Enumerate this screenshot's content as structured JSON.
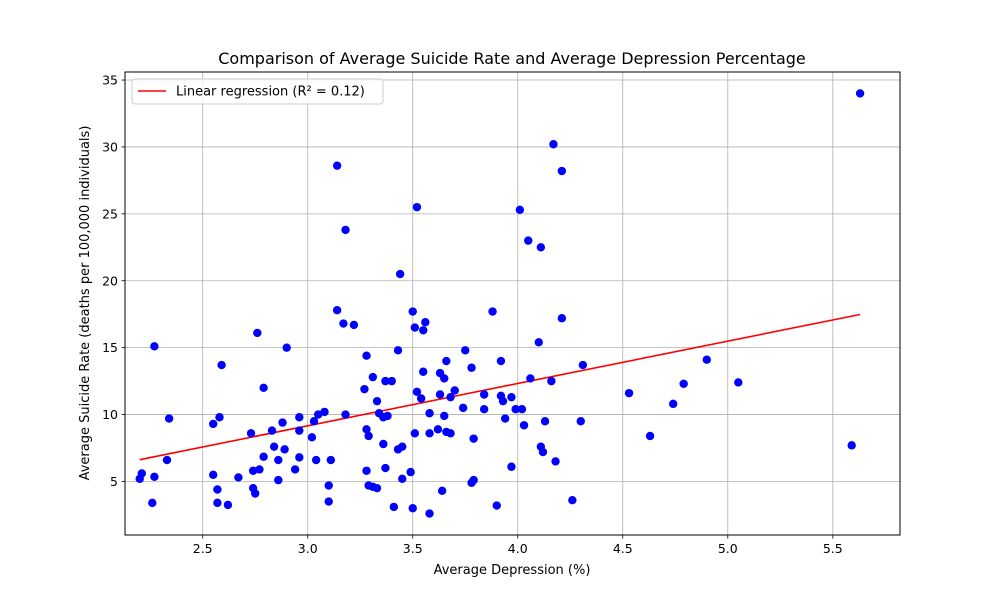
{
  "chart_data": {
    "type": "scatter",
    "title": "Comparison of Average Suicide Rate and Average Depression Percentage",
    "xlabel": "Average Depression (%)",
    "ylabel": "Average Suicide Rate (deaths per 100,000 individuals)",
    "xlim": [
      2.13,
      5.82
    ],
    "ylim": [
      1.0,
      35.6
    ],
    "x_ticks": [
      "2.5",
      "3.0",
      "3.5",
      "4.0",
      "4.5",
      "5.0",
      "5.5"
    ],
    "y_ticks": [
      "5",
      "10",
      "15",
      "20",
      "25",
      "30",
      "35"
    ],
    "grid": true,
    "legend_position": "top-left",
    "point_color": "#0000ff",
    "regression": {
      "label": "Linear regression (R² = 0.12)",
      "color": "#ff0000",
      "x": [
        2.2,
        5.63
      ],
      "y": [
        6.63,
        17.48
      ]
    },
    "points": [
      [
        2.2,
        5.2
      ],
      [
        2.21,
        5.6
      ],
      [
        2.26,
        3.4
      ],
      [
        2.27,
        15.1
      ],
      [
        2.27,
        5.35
      ],
      [
        2.33,
        6.6
      ],
      [
        2.34,
        9.7
      ],
      [
        2.55,
        9.3
      ],
      [
        2.55,
        5.5
      ],
      [
        2.57,
        4.4
      ],
      [
        2.57,
        3.4
      ],
      [
        2.58,
        9.8
      ],
      [
        2.59,
        13.7
      ],
      [
        2.62,
        3.25
      ],
      [
        2.67,
        5.3
      ],
      [
        2.73,
        8.6
      ],
      [
        2.74,
        4.5
      ],
      [
        2.74,
        5.8
      ],
      [
        2.75,
        4.1
      ],
      [
        2.76,
        16.1
      ],
      [
        2.77,
        5.9
      ],
      [
        2.79,
        12.0
      ],
      [
        2.79,
        6.85
      ],
      [
        2.83,
        8.8
      ],
      [
        2.84,
        7.6
      ],
      [
        2.86,
        5.1
      ],
      [
        2.86,
        6.6
      ],
      [
        2.88,
        9.4
      ],
      [
        2.89,
        7.4
      ],
      [
        2.9,
        15.0
      ],
      [
        2.94,
        5.9
      ],
      [
        2.96,
        6.8
      ],
      [
        2.96,
        9.8
      ],
      [
        2.96,
        8.8
      ],
      [
        3.02,
        8.3
      ],
      [
        3.03,
        9.5
      ],
      [
        3.04,
        6.6
      ],
      [
        3.05,
        10.0
      ],
      [
        3.08,
        10.2
      ],
      [
        3.1,
        4.7
      ],
      [
        3.1,
        3.5
      ],
      [
        3.11,
        6.6
      ],
      [
        3.14,
        28.6
      ],
      [
        3.14,
        17.8
      ],
      [
        3.17,
        16.8
      ],
      [
        3.18,
        23.8
      ],
      [
        3.18,
        10.0
      ],
      [
        3.22,
        16.7
      ],
      [
        3.27,
        11.9
      ],
      [
        3.28,
        14.4
      ],
      [
        3.28,
        8.9
      ],
      [
        3.28,
        5.8
      ],
      [
        3.29,
        8.4
      ],
      [
        3.29,
        4.7
      ],
      [
        3.31,
        12.8
      ],
      [
        3.31,
        4.6
      ],
      [
        3.33,
        4.5
      ],
      [
        3.33,
        11.0
      ],
      [
        3.34,
        10.1
      ],
      [
        3.36,
        9.8
      ],
      [
        3.36,
        7.8
      ],
      [
        3.37,
        12.5
      ],
      [
        3.37,
        6.0
      ],
      [
        3.38,
        9.9
      ],
      [
        3.4,
        12.5
      ],
      [
        3.41,
        3.1
      ],
      [
        3.43,
        7.4
      ],
      [
        3.43,
        14.8
      ],
      [
        3.44,
        20.5
      ],
      [
        3.45,
        7.6
      ],
      [
        3.45,
        5.2
      ],
      [
        3.49,
        5.7
      ],
      [
        3.5,
        17.7
      ],
      [
        3.5,
        3.0
      ],
      [
        3.51,
        16.5
      ],
      [
        3.51,
        8.6
      ],
      [
        3.52,
        25.5
      ],
      [
        3.52,
        11.7
      ],
      [
        3.54,
        11.2
      ],
      [
        3.55,
        13.2
      ],
      [
        3.55,
        16.3
      ],
      [
        3.56,
        16.9
      ],
      [
        3.58,
        8.6
      ],
      [
        3.58,
        10.1
      ],
      [
        3.58,
        2.6
      ],
      [
        3.62,
        8.9
      ],
      [
        3.63,
        13.1
      ],
      [
        3.63,
        11.5
      ],
      [
        3.64,
        4.3
      ],
      [
        3.65,
        12.7
      ],
      [
        3.65,
        9.9
      ],
      [
        3.66,
        8.7
      ],
      [
        3.66,
        14.0
      ],
      [
        3.68,
        11.3
      ],
      [
        3.68,
        8.6
      ],
      [
        3.7,
        11.8
      ],
      [
        3.74,
        10.5
      ],
      [
        3.75,
        14.8
      ],
      [
        3.78,
        13.5
      ],
      [
        3.78,
        4.9
      ],
      [
        3.79,
        5.1
      ],
      [
        3.79,
        8.2
      ],
      [
        3.84,
        11.5
      ],
      [
        3.84,
        10.4
      ],
      [
        3.88,
        17.7
      ],
      [
        3.9,
        3.2
      ],
      [
        3.92,
        14.0
      ],
      [
        3.92,
        11.4
      ],
      [
        3.93,
        11.0
      ],
      [
        3.94,
        9.7
      ],
      [
        3.97,
        11.3
      ],
      [
        3.97,
        6.1
      ],
      [
        3.99,
        10.4
      ],
      [
        4.01,
        25.3
      ],
      [
        4.02,
        10.4
      ],
      [
        4.03,
        9.2
      ],
      [
        4.05,
        23.0
      ],
      [
        4.06,
        12.7
      ],
      [
        4.1,
        15.4
      ],
      [
        4.11,
        22.5
      ],
      [
        4.11,
        7.6
      ],
      [
        4.12,
        7.2
      ],
      [
        4.13,
        9.5
      ],
      [
        4.16,
        12.5
      ],
      [
        4.17,
        30.2
      ],
      [
        4.18,
        6.5
      ],
      [
        4.21,
        28.2
      ],
      [
        4.21,
        17.2
      ],
      [
        4.26,
        3.6
      ],
      [
        4.3,
        9.5
      ],
      [
        4.31,
        13.7
      ],
      [
        4.53,
        11.6
      ],
      [
        4.63,
        8.4
      ],
      [
        4.74,
        10.8
      ],
      [
        4.79,
        12.3
      ],
      [
        4.9,
        14.1
      ],
      [
        5.05,
        12.4
      ],
      [
        5.59,
        7.7
      ],
      [
        5.63,
        34.0
      ]
    ]
  }
}
